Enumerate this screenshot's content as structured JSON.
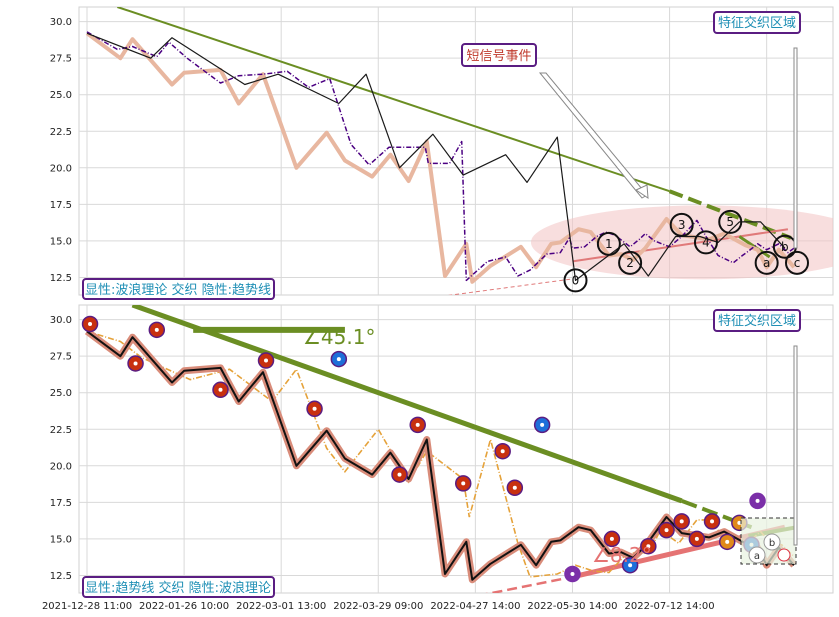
{
  "chart_data": [
    {
      "type": "line",
      "panel": "top",
      "ylim": [
        11.3,
        31
      ],
      "yticks": [
        "30.0",
        "27.5",
        "25.0",
        "22.5",
        "20.0",
        "17.5",
        "15.0",
        "12.5"
      ],
      "grid": true,
      "series": [
        {
          "x": [
            0.0,
            1.0,
            1.5,
            2.3,
            2.7,
            3.3,
            4.4,
            5.0,
            5.8,
            6.6,
            7.3,
            8.0,
            8.7,
            9.3,
            9.95,
            11.15,
            11.25,
            11.95,
            12.35,
            12.5,
            13.2,
            13.8,
            14.2,
            14.6,
            15.15,
            15.6,
            15.9,
            16.0,
            16.4,
            16.8,
            17.1,
            17.4,
            17.9,
            18.2,
            18.4,
            18.7,
            19.2,
            19.6,
            20.1,
            20.4,
            20.8,
            21.3,
            21.6,
            21.8,
            22.1,
            22.4,
            22.8,
            23.1,
            23.3
          ],
          "y": [
            29.3,
            28.1,
            28.3,
            27.6,
            28.6,
            27.5,
            25.8,
            26.3,
            26.4,
            26.6,
            25.5,
            26.1,
            21.6,
            20.2,
            21.4,
            21.4,
            20.3,
            20.3,
            21.8,
            12.3,
            13.6,
            13.9,
            12.6,
            13.0,
            14.1,
            14.2,
            15.2,
            14.5,
            14.6,
            15.3,
            15.6,
            15.4,
            14.6,
            15.1,
            15.5,
            15.0,
            14.6,
            15.3,
            16.4,
            15.3,
            14.0,
            13.5,
            14.0,
            14.3,
            14.8,
            14.4,
            14.8,
            14.2,
            14.5
          ]
        },
        {
          "x": [
            0.0,
            1.1,
            1.5,
            2.8,
            3.2,
            4.4,
            5.0,
            5.8,
            6.9,
            7.9,
            8.5,
            9.4,
            10.0,
            10.6,
            11.2,
            11.8,
            12.5,
            12.7,
            13.3,
            14.3,
            14.8,
            15.3,
            15.6,
            16.2,
            16.6,
            17.2,
            17.6,
            18.0,
            18.4,
            19.1,
            19.6,
            20.5,
            21.0,
            21.7,
            22.1,
            22.4,
            22.8,
            23.3
          ],
          "y": [
            29.2,
            27.5,
            28.8,
            25.7,
            26.5,
            26.7,
            24.4,
            26.4,
            20.0,
            22.4,
            20.5,
            19.4,
            20.9,
            19.1,
            21.8,
            12.6,
            14.8,
            12.2,
            13.3,
            14.6,
            13.2,
            14.8,
            14.9,
            15.8,
            15.6,
            14.0,
            14.1,
            13.7,
            14.5,
            16.5,
            15.4,
            15.1,
            15.5,
            14.7,
            14.4,
            13.2,
            14.4,
            13.2
          ]
        },
        {
          "x": [
            0.0,
            2.1,
            2.8,
            5.2,
            6.3,
            8.3,
            9.2,
            10.3,
            11.4,
            12.4,
            13.8,
            14.5,
            15.5,
            16.1,
            17.7,
            18.5,
            19.4,
            20.2,
            20.8,
            21.5,
            22.2,
            23.0
          ],
          "y": [
            29.2,
            27.5,
            28.9,
            25.7,
            26.4,
            24.4,
            26.4,
            20.0,
            22.3,
            19.5,
            20.9,
            19.0,
            22.1,
            12.3,
            14.8,
            12.6,
            15.3,
            15.3,
            14.9,
            16.3,
            16.3,
            14.5
          ]
        }
      ],
      "wave_labels": [
        {
          "x": 16.1,
          "y": 12.3,
          "label": "0"
        },
        {
          "x": 17.2,
          "y": 14.8,
          "label": "1"
        },
        {
          "x": 17.9,
          "y": 13.5,
          "label": "2"
        },
        {
          "x": 19.6,
          "y": 16.1,
          "label": "3"
        },
        {
          "x": 20.4,
          "y": 14.9,
          "label": "4"
        },
        {
          "x": 21.2,
          "y": 16.3,
          "label": "5"
        },
        {
          "x": 22.4,
          "y": 13.5,
          "label": "a"
        },
        {
          "x": 23.0,
          "y": 14.6,
          "label": "b"
        },
        {
          "x": 23.4,
          "y": 13.5,
          "label": "c"
        }
      ],
      "trendlines": [
        {
          "x": [
            1.0,
            19.2
          ],
          "y": [
            31.0,
            18.4
          ]
        },
        {
          "x": [
            19.2,
            23.2
          ],
          "y": [
            18.4,
            15.2
          ]
        },
        {
          "x": [
            16.0,
            23.1
          ],
          "y": [
            13.6,
            15.8
          ]
        },
        {
          "x": [
            5.5,
            16.0
          ],
          "y": [
            9.5,
            12.4
          ]
        }
      ],
      "ellipse_center": {
        "x": 20.3,
        "y": 14.9
      },
      "annotations": {
        "top_right": "特征交织区域",
        "callout": "短信号事件",
        "bottom_left": "显性:波浪理论 交织 隐性:趋势线"
      }
    },
    {
      "type": "line",
      "panel": "bottom",
      "ylim": [
        11.3,
        31
      ],
      "yticks": [
        "30.0",
        "27.5",
        "25.0",
        "22.5",
        "20.0",
        "17.5",
        "15.0",
        "12.5"
      ],
      "xticks": [
        "2021-12-28 11:00",
        "2022-01-26 10:00",
        "2022-03-01 13:00",
        "2022-03-29 09:00",
        "2022-04-27 14:00",
        "2022-05-30 14:00",
        "2022-07-12 14:00"
      ],
      "grid": true,
      "series": [
        {
          "x": [
            0.0,
            1.1,
            1.8,
            3.4,
            4.7,
            6.1,
            6.9,
            7.9,
            8.5,
            9.6,
            10.6,
            11.2,
            12.4,
            12.6,
            13.3,
            14.2,
            14.6,
            15.5,
            16.1,
            16.7,
            17.2,
            17.7,
            18.1,
            18.5,
            18.9,
            19.5,
            20.1,
            20.6,
            21.0,
            21.4,
            21.7,
            22.2,
            22.5,
            22.9,
            23.3
          ],
          "y": [
            29.2,
            28.5,
            27.4,
            25.9,
            26.6,
            24.4,
            26.6,
            21.2,
            19.6,
            22.5,
            18.9,
            21.0,
            19.1,
            16.5,
            21.8,
            14.7,
            12.4,
            12.6,
            13.2,
            12.8,
            12.7,
            13.8,
            14.1,
            14.0,
            15.6,
            14.7,
            16.3,
            16.3,
            14.9,
            15.0,
            14.6,
            15.5,
            14.8,
            14.6,
            13.8
          ]
        },
        {
          "x": [
            0.0,
            1.1,
            1.5,
            2.8,
            3.2,
            4.4,
            5.0,
            5.8,
            6.9,
            7.9,
            8.5,
            9.4,
            10.0,
            10.6,
            11.2,
            11.8,
            12.5,
            12.7,
            13.3,
            14.3,
            14.8,
            15.3,
            15.6,
            16.2,
            16.6,
            17.2,
            17.6,
            18.0,
            18.4,
            19.1,
            19.6,
            20.5,
            21.0,
            21.7,
            22.1,
            22.4,
            22.8,
            23.3
          ],
          "y": [
            29.2,
            27.5,
            28.8,
            25.7,
            26.5,
            26.7,
            24.4,
            26.4,
            20.0,
            22.4,
            20.5,
            19.4,
            20.9,
            19.1,
            21.8,
            12.6,
            14.8,
            12.2,
            13.3,
            14.6,
            13.2,
            14.8,
            14.9,
            15.8,
            15.6,
            14.0,
            14.1,
            13.7,
            14.5,
            16.5,
            15.4,
            15.1,
            15.5,
            14.7,
            14.4,
            13.2,
            14.4,
            13.2
          ]
        },
        {
          "x": [
            0.0,
            1.1,
            1.5,
            2.8,
            3.2,
            4.4,
            5.0,
            5.8,
            6.9,
            7.9,
            8.5,
            9.4,
            10.0,
            10.6,
            11.2,
            11.8,
            12.5,
            12.7,
            13.3,
            14.3,
            14.8,
            15.3,
            15.6,
            16.2,
            16.6,
            17.2,
            17.6,
            18.0,
            18.4,
            19.1,
            19.6,
            20.5,
            21.0,
            21.7,
            22.1,
            22.4,
            22.8,
            23.3
          ],
          "y": [
            29.2,
            27.5,
            28.8,
            25.7,
            26.5,
            26.7,
            24.4,
            26.4,
            20.0,
            22.4,
            20.5,
            19.4,
            20.9,
            19.1,
            21.8,
            12.6,
            14.8,
            12.2,
            13.3,
            14.6,
            13.2,
            14.8,
            14.9,
            15.8,
            15.6,
            14.0,
            14.1,
            13.7,
            14.5,
            16.5,
            15.4,
            15.1,
            15.5,
            14.7,
            14.4,
            13.2,
            14.4,
            13.2
          ]
        }
      ],
      "markers": [
        {
          "x": 0.1,
          "y": 29.7,
          "c": "#c8300f"
        },
        {
          "x": 1.6,
          "y": 27.0,
          "c": "#c8300f"
        },
        {
          "x": 2.3,
          "y": 29.3,
          "c": "#c8300f"
        },
        {
          "x": 4.4,
          "y": 25.2,
          "c": "#c8300f"
        },
        {
          "x": 5.9,
          "y": 27.2,
          "c": "#c8300f"
        },
        {
          "x": 7.5,
          "y": 23.9,
          "c": "#c8300f"
        },
        {
          "x": 8.3,
          "y": 27.3,
          "c": "#1e6fd9"
        },
        {
          "x": 10.3,
          "y": 19.4,
          "c": "#c8300f"
        },
        {
          "x": 10.9,
          "y": 22.8,
          "c": "#c8300f"
        },
        {
          "x": 12.4,
          "y": 18.8,
          "c": "#c8300f"
        },
        {
          "x": 13.7,
          "y": 21.0,
          "c": "#c8300f"
        },
        {
          "x": 14.1,
          "y": 18.5,
          "c": "#c8300f"
        },
        {
          "x": 15.0,
          "y": 22.8,
          "c": "#1e6fd9"
        },
        {
          "x": 16.0,
          "y": 12.6,
          "c": "#7b2fa8"
        },
        {
          "x": 17.3,
          "y": 15.0,
          "c": "#c8300f"
        },
        {
          "x": 17.9,
          "y": 13.2,
          "c": "#1e6fd9"
        },
        {
          "x": 18.5,
          "y": 14.5,
          "c": "#c8300f"
        },
        {
          "x": 19.1,
          "y": 15.6,
          "c": "#c8300f"
        },
        {
          "x": 19.6,
          "y": 16.2,
          "c": "#c8300f"
        },
        {
          "x": 20.1,
          "y": 15.0,
          "c": "#c8300f"
        },
        {
          "x": 20.6,
          "y": 16.2,
          "c": "#c8300f"
        },
        {
          "x": 21.1,
          "y": 14.8,
          "c": "#e0891a"
        },
        {
          "x": 21.5,
          "y": 16.1,
          "c": "#e0891a"
        },
        {
          "x": 21.9,
          "y": 14.6,
          "c": "#1e6fd9"
        },
        {
          "x": 22.1,
          "y": 17.6,
          "c": "#7b2fa8"
        }
      ],
      "trendlines": [
        {
          "x": [
            1.5,
            21.9
          ],
          "y": [
            31.0,
            15.8
          ]
        },
        {
          "x": [
            3.5,
            8.5
          ],
          "y": [
            29.3,
            29.3
          ]
        },
        {
          "x": [
            9.0,
            16.0
          ],
          "y": [
            9.5,
            12.4
          ]
        },
        {
          "x": [
            16.0,
            23.0
          ],
          "y": [
            12.4,
            15.8
          ]
        }
      ],
      "angle_labels": {
        "upper": "∠45.1°",
        "lower": "∠8.2°"
      },
      "annotations": {
        "top_right": "特征交织区域",
        "bottom_left": "显性:趋势线 交织 隐性:波浪理论",
        "zoom_box": [
          "b",
          "a"
        ]
      }
    }
  ]
}
